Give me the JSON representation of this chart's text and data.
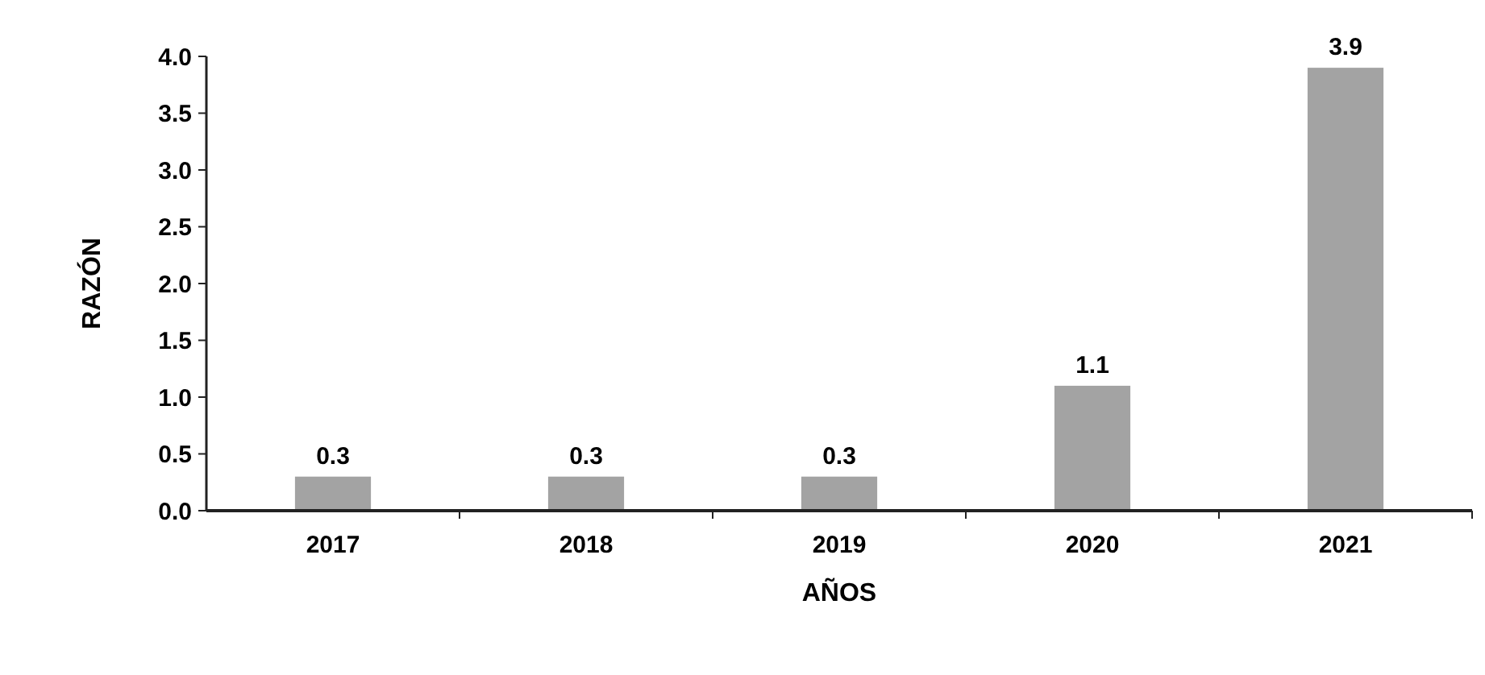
{
  "chart_data": {
    "type": "bar",
    "xlabel": "AÑOS",
    "ylabel": "RAZÓN",
    "categories": [
      "2017",
      "2018",
      "2019",
      "2020",
      "2021"
    ],
    "values": [
      0.3,
      0.3,
      0.3,
      1.1,
      3.9
    ],
    "color": "#a3a3a3",
    "ylim": [
      0,
      4
    ],
    "yticks": [
      {
        "value": 0,
        "label": "0.0"
      },
      {
        "value": 0.5,
        "label": "0.5"
      },
      {
        "value": 1,
        "label": "1.0"
      },
      {
        "value": 1.5,
        "label": "1.5"
      },
      {
        "value": 2,
        "label": "2.0"
      },
      {
        "value": 2.5,
        "label": "2.5"
      },
      {
        "value": 3,
        "label": "3.0"
      },
      {
        "value": 3.5,
        "label": "3.5"
      },
      {
        "value": 4,
        "label": "4.0"
      }
    ],
    "data_labels": true
  }
}
